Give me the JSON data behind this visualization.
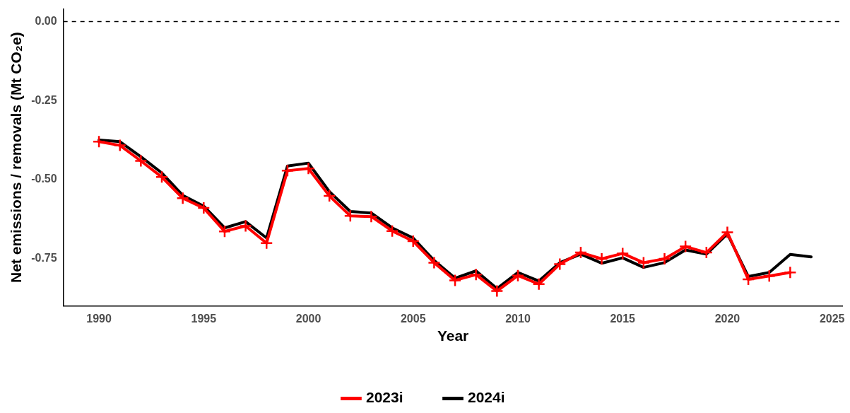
{
  "chart_data": {
    "type": "line",
    "xlabel": "Year",
    "ylabel": "Net emissions / removals (Mt CO₂e)",
    "xlim": [
      1988.3,
      2025.5
    ],
    "xticks": [
      1990,
      1995,
      2000,
      2005,
      2010,
      2015,
      2020,
      2025
    ],
    "ylim": [
      -0.9,
      0.04
    ],
    "yticks": [
      {
        "value": 0,
        "label": "0.00"
      },
      {
        "value": -0.25,
        "label": "-0.25"
      },
      {
        "value": -0.5,
        "label": "-0.50"
      },
      {
        "value": -0.75,
        "label": "-0.75"
      }
    ],
    "grid": false,
    "legend": "bottom",
    "line_style": "solid",
    "ref_lines": [
      {
        "axis": "y",
        "value": 0,
        "color": "#000000",
        "line_style": "dashed"
      }
    ],
    "series": [
      {
        "name": "2023i",
        "color": "#ff0000",
        "marker": "cross",
        "x": [
          1990,
          1991,
          1992,
          1993,
          1994,
          1995,
          1996,
          1997,
          1998,
          1999,
          2000,
          2001,
          2002,
          2003,
          2004,
          2005,
          2006,
          2007,
          2008,
          2009,
          2010,
          2011,
          2012,
          2013,
          2014,
          2015,
          2016,
          2017,
          2018,
          2019,
          2020,
          2021,
          2022,
          2023
        ],
        "values": [
          -0.38,
          -0.392,
          -0.441,
          -0.492,
          -0.559,
          -0.59,
          -0.664,
          -0.647,
          -0.701,
          -0.472,
          -0.465,
          -0.552,
          -0.615,
          -0.617,
          -0.663,
          -0.695,
          -0.763,
          -0.819,
          -0.801,
          -0.853,
          -0.804,
          -0.831,
          -0.768,
          -0.731,
          -0.751,
          -0.734,
          -0.763,
          -0.751,
          -0.712,
          -0.731,
          -0.667,
          -0.816,
          -0.805,
          -0.794
        ]
      },
      {
        "name": "2024i",
        "color": "#000000",
        "marker": "none",
        "x": [
          1990,
          1991,
          1992,
          1993,
          1994,
          1995,
          1996,
          1997,
          1998,
          1999,
          2000,
          2001,
          2002,
          2003,
          2004,
          2005,
          2006,
          2007,
          2008,
          2009,
          2010,
          2011,
          2012,
          2013,
          2014,
          2015,
          2016,
          2017,
          2018,
          2019,
          2020,
          2021,
          2022,
          2023,
          2024
        ],
        "values": [
          -0.375,
          -0.38,
          -0.428,
          -0.479,
          -0.55,
          -0.584,
          -0.653,
          -0.633,
          -0.685,
          -0.457,
          -0.448,
          -0.538,
          -0.601,
          -0.606,
          -0.653,
          -0.685,
          -0.756,
          -0.812,
          -0.789,
          -0.845,
          -0.794,
          -0.821,
          -0.763,
          -0.736,
          -0.765,
          -0.748,
          -0.778,
          -0.763,
          -0.723,
          -0.736,
          -0.672,
          -0.807,
          -0.794,
          -0.737,
          -0.745
        ]
      }
    ]
  }
}
